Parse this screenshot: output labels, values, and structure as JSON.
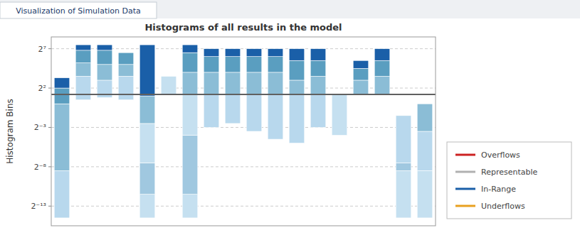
{
  "chart_data": {
    "type": "bar",
    "title": "Histograms of all results in the model",
    "subtitle": "Visualization of Simulation Data",
    "ylabel": "Histogram Bins",
    "categories": [
      null,
      null,
      null,
      null,
      null,
      null,
      null,
      null,
      null,
      null,
      null,
      null,
      null,
      null,
      null,
      null,
      null,
      null
    ],
    "bars": [
      {
        "segments": [
          {
            "bottom": -14.5,
            "top": -8.5,
            "color": "#b8d8ed"
          },
          {
            "bottom": -8.5,
            "top": 0.0,
            "color": "#8bbdd6"
          },
          {
            "bottom": 0.0,
            "top": 2.0,
            "color": "#5a9ec0"
          },
          {
            "bottom": 2.0,
            "top": 3.3,
            "color": "#1a5fa8"
          }
        ]
      },
      {
        "segments": [
          {
            "bottom": 0.5,
            "top": 3.5,
            "color": "#b8d8ed"
          },
          {
            "bottom": 3.5,
            "top": 5.2,
            "color": "#8bbdd6"
          },
          {
            "bottom": 5.2,
            "top": 6.8,
            "color": "#5a9ec0"
          },
          {
            "bottom": 6.8,
            "top": 7.5,
            "color": "#1a5fa8"
          }
        ]
      },
      {
        "segments": [
          {
            "bottom": 0.8,
            "top": 3.0,
            "color": "#b8d8ed"
          },
          {
            "bottom": 3.0,
            "top": 5.0,
            "color": "#8bbdd6"
          },
          {
            "bottom": 5.0,
            "top": 6.8,
            "color": "#5a9ec0"
          },
          {
            "bottom": 6.8,
            "top": 7.5,
            "color": "#1a5fa8"
          }
        ]
      },
      {
        "segments": [
          {
            "bottom": 0.5,
            "top": 3.5,
            "color": "#b8d8ed"
          },
          {
            "bottom": 3.5,
            "top": 5.0,
            "color": "#8bbdd6"
          },
          {
            "bottom": 5.0,
            "top": 6.5,
            "color": "#5a9ec0"
          }
        ]
      },
      {
        "segments": [
          {
            "bottom": -14.5,
            "top": -11.5,
            "color": "#c5e0f0"
          },
          {
            "bottom": -11.5,
            "top": -7.5,
            "color": "#a0c8e0"
          },
          {
            "bottom": -7.5,
            "top": -2.5,
            "color": "#c5e0f0"
          },
          {
            "bottom": -2.5,
            "top": 1.0,
            "color": "#8bbdd6"
          },
          {
            "bottom": 1.0,
            "top": 7.5,
            "color": "#1a5fa8"
          }
        ]
      },
      {
        "segments": [
          {
            "bottom": 1.2,
            "top": 3.5,
            "color": "#c5e0f0"
          }
        ]
      },
      {
        "segments": [
          {
            "bottom": -14.5,
            "top": -11.5,
            "color": "#c5e0f0"
          },
          {
            "bottom": -11.5,
            "top": -4.0,
            "color": "#a0c8e0"
          },
          {
            "bottom": -4.0,
            "top": 1.2,
            "color": "#c5e0f0"
          },
          {
            "bottom": 1.2,
            "top": 4.0,
            "color": "#8bbdd6"
          },
          {
            "bottom": 4.0,
            "top": 6.5,
            "color": "#5a9ec0"
          },
          {
            "bottom": 6.5,
            "top": 7.5,
            "color": "#1a5fa8"
          }
        ]
      },
      {
        "segments": [
          {
            "bottom": -3.0,
            "top": 1.2,
            "color": "#b8d8ed"
          },
          {
            "bottom": 1.2,
            "top": 4.0,
            "color": "#8bbdd6"
          },
          {
            "bottom": 4.0,
            "top": 6.0,
            "color": "#5a9ec0"
          },
          {
            "bottom": 6.0,
            "top": 7.0,
            "color": "#1a5fa8"
          }
        ]
      },
      {
        "segments": [
          {
            "bottom": -2.5,
            "top": 1.2,
            "color": "#b8d8ed"
          },
          {
            "bottom": 1.2,
            "top": 4.0,
            "color": "#8bbdd6"
          },
          {
            "bottom": 4.0,
            "top": 6.0,
            "color": "#5a9ec0"
          },
          {
            "bottom": 6.0,
            "top": 7.0,
            "color": "#1a5fa8"
          }
        ]
      },
      {
        "segments": [
          {
            "bottom": -3.5,
            "top": 1.2,
            "color": "#b8d8ed"
          },
          {
            "bottom": 1.2,
            "top": 4.0,
            "color": "#8bbdd6"
          },
          {
            "bottom": 4.0,
            "top": 6.0,
            "color": "#5a9ec0"
          },
          {
            "bottom": 6.0,
            "top": 7.0,
            "color": "#1a5fa8"
          }
        ]
      },
      {
        "segments": [
          {
            "bottom": -4.5,
            "top": 1.2,
            "color": "#b8d8ed"
          },
          {
            "bottom": 1.2,
            "top": 4.0,
            "color": "#8bbdd6"
          },
          {
            "bottom": 4.0,
            "top": 6.0,
            "color": "#5a9ec0"
          },
          {
            "bottom": 6.0,
            "top": 7.0,
            "color": "#1a5fa8"
          }
        ]
      },
      {
        "segments": [
          {
            "bottom": -5.0,
            "top": 1.2,
            "color": "#b8d8ed"
          },
          {
            "bottom": 1.2,
            "top": 3.0,
            "color": "#8bbdd6"
          },
          {
            "bottom": 3.0,
            "top": 5.5,
            "color": "#5a9ec0"
          },
          {
            "bottom": 5.5,
            "top": 7.0,
            "color": "#1a5fa8"
          }
        ]
      },
      {
        "segments": [
          {
            "bottom": -3.0,
            "top": 1.2,
            "color": "#b8d8ed"
          },
          {
            "bottom": 1.2,
            "top": 3.5,
            "color": "#8bbdd6"
          },
          {
            "bottom": 3.5,
            "top": 5.5,
            "color": "#5a9ec0"
          },
          {
            "bottom": 5.5,
            "top": 7.0,
            "color": "#1a5fa8"
          }
        ]
      },
      {
        "segments": [
          {
            "bottom": -4.0,
            "top": 1.2,
            "color": "#c5e0f0"
          }
        ]
      },
      {
        "segments": [
          {
            "bottom": 1.2,
            "top": 3.0,
            "color": "#8bbdd6"
          },
          {
            "bottom": 3.0,
            "top": 4.5,
            "color": "#5a9ec0"
          },
          {
            "bottom": 4.5,
            "top": 5.5,
            "color": "#1a5fa8"
          }
        ]
      },
      {
        "segments": [
          {
            "bottom": 1.2,
            "top": 3.5,
            "color": "#8bbdd6"
          },
          {
            "bottom": 3.5,
            "top": 5.5,
            "color": "#5a9ec0"
          },
          {
            "bottom": 5.5,
            "top": 7.0,
            "color": "#1a5fa8"
          }
        ]
      },
      {
        "segments": [
          {
            "bottom": -14.5,
            "top": -8.5,
            "color": "#c5e0f0"
          },
          {
            "bottom": -8.5,
            "top": -4.5,
            "color": "#a0c8e0"
          },
          {
            "bottom": -4.5,
            "top": -7.5,
            "color": "#c5e0f0"
          },
          {
            "bottom": -7.5,
            "top": -1.5,
            "color": "#b8d8ed"
          }
        ]
      },
      {
        "segments": [
          {
            "bottom": -14.5,
            "top": -8.5,
            "color": "#c5e0f0"
          },
          {
            "bottom": -8.5,
            "top": -3.5,
            "color": "#b8d8ed"
          },
          {
            "bottom": -3.5,
            "top": 0.0,
            "color": "#8bbdd6"
          }
        ]
      }
    ],
    "reference_lines": [
      {
        "value": 1.2,
        "color": "#606060"
      }
    ],
    "ylim": [
      -15.5,
      8.5
    ],
    "yticks": [
      {
        "value": -13,
        "label": "2⁻¹³"
      },
      {
        "value": -8,
        "label": "2⁻⁸"
      },
      {
        "value": -3,
        "label": "2⁻³"
      },
      {
        "value": 2,
        "label": "2²"
      },
      {
        "value": 7,
        "label": "2⁷"
      }
    ],
    "grid": true,
    "tick_labels": "y",
    "legend": "right",
    "legend_entries": [
      {
        "name": "Overflows",
        "color": "#cc2222"
      },
      {
        "name": "Representable",
        "color": "#b0b0b0"
      },
      {
        "name": "In-Range",
        "color": "#1a5fa8"
      },
      {
        "name": "Underflows",
        "color": "#e8a020"
      }
    ]
  }
}
